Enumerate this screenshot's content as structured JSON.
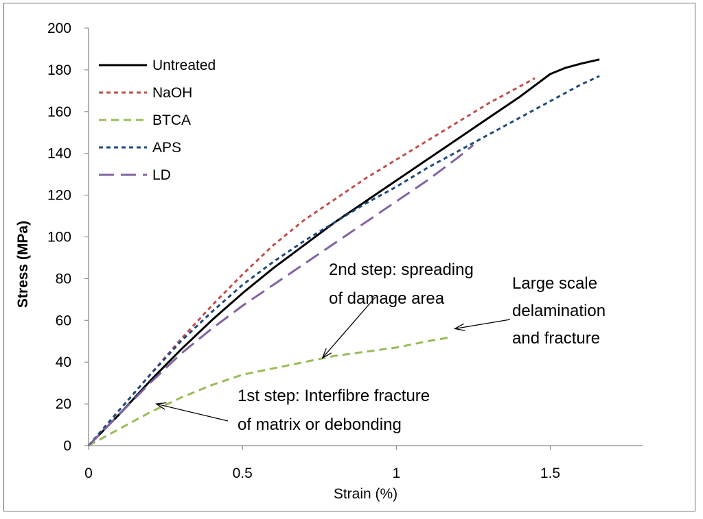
{
  "chart_data": {
    "type": "line",
    "title": "",
    "xlabel": "Strain (%)",
    "ylabel": "Stress (MPa)",
    "xlim": [
      0,
      1.8
    ],
    "ylim": [
      0,
      200
    ],
    "x_ticks": [
      0,
      0.5,
      1,
      1.5
    ],
    "y_ticks": [
      0,
      20,
      40,
      60,
      80,
      100,
      120,
      140,
      160,
      180,
      200
    ],
    "x_tick_labels": [
      "0",
      "0.5",
      "1",
      "1.5"
    ],
    "y_tick_labels": [
      "0",
      "20",
      "40",
      "60",
      "80",
      "100",
      "120",
      "140",
      "160",
      "180",
      "200"
    ],
    "grid": false,
    "legend_position": "top-left",
    "series": [
      {
        "name": "Untreated",
        "color": "#000000",
        "dash": "solid",
        "points": [
          [
            0,
            0
          ],
          [
            0.1,
            15
          ],
          [
            0.2,
            31
          ],
          [
            0.3,
            46
          ],
          [
            0.4,
            60
          ],
          [
            0.5,
            73
          ],
          [
            0.6,
            85
          ],
          [
            0.7,
            96
          ],
          [
            0.8,
            107
          ],
          [
            0.9,
            117
          ],
          [
            1.0,
            127
          ],
          [
            1.1,
            137
          ],
          [
            1.2,
            147
          ],
          [
            1.3,
            157
          ],
          [
            1.4,
            167
          ],
          [
            1.5,
            178
          ],
          [
            1.55,
            181
          ],
          [
            1.6,
            183
          ],
          [
            1.66,
            185
          ]
        ]
      },
      {
        "name": "NaOH",
        "color": "#c0504d",
        "dash": "short",
        "points": [
          [
            0,
            0
          ],
          [
            0.1,
            17
          ],
          [
            0.2,
            34
          ],
          [
            0.3,
            51
          ],
          [
            0.4,
            67
          ],
          [
            0.5,
            82
          ],
          [
            0.6,
            96
          ],
          [
            0.7,
            108
          ],
          [
            0.8,
            118
          ],
          [
            0.9,
            128
          ],
          [
            1.0,
            137
          ],
          [
            1.1,
            146
          ],
          [
            1.2,
            155
          ],
          [
            1.3,
            164
          ],
          [
            1.4,
            172
          ],
          [
            1.45,
            176
          ]
        ]
      },
      {
        "name": "BTCA",
        "color": "#9bbb59",
        "dash": "medium",
        "points": [
          [
            0,
            0
          ],
          [
            0.1,
            8
          ],
          [
            0.2,
            16
          ],
          [
            0.3,
            23
          ],
          [
            0.4,
            29
          ],
          [
            0.5,
            34
          ],
          [
            0.6,
            37
          ],
          [
            0.7,
            40
          ],
          [
            0.8,
            43
          ],
          [
            0.9,
            45
          ],
          [
            1.0,
            47
          ],
          [
            1.1,
            50
          ],
          [
            1.18,
            52
          ]
        ]
      },
      {
        "name": "APS",
        "color": "#1f497d",
        "dash": "short",
        "points": [
          [
            0,
            0
          ],
          [
            0.1,
            17
          ],
          [
            0.2,
            34
          ],
          [
            0.3,
            50
          ],
          [
            0.4,
            64
          ],
          [
            0.5,
            77
          ],
          [
            0.6,
            88
          ],
          [
            0.7,
            98
          ],
          [
            0.8,
            107
          ],
          [
            0.9,
            116
          ],
          [
            1.0,
            124
          ],
          [
            1.1,
            133
          ],
          [
            1.2,
            141
          ],
          [
            1.3,
            149
          ],
          [
            1.4,
            157
          ],
          [
            1.5,
            165
          ],
          [
            1.6,
            173
          ],
          [
            1.66,
            177
          ]
        ]
      },
      {
        "name": "LD",
        "color": "#8064a2",
        "dash": "long",
        "points": [
          [
            0,
            0
          ],
          [
            0.1,
            15
          ],
          [
            0.2,
            30
          ],
          [
            0.3,
            44
          ],
          [
            0.4,
            56
          ],
          [
            0.5,
            67
          ],
          [
            0.6,
            77
          ],
          [
            0.7,
            87
          ],
          [
            0.8,
            97
          ],
          [
            0.9,
            107
          ],
          [
            1.0,
            117
          ],
          [
            1.1,
            127
          ],
          [
            1.2,
            138
          ],
          [
            1.25,
            144
          ]
        ]
      }
    ],
    "annotations": [
      {
        "lines": [
          "1st step: Interfibre fracture",
          "of matrix or debonding"
        ],
        "arrow_to": [
          0.22,
          20
        ]
      },
      {
        "lines": [
          "2nd step: spreading",
          "of damage area"
        ],
        "arrow_to": [
          0.76,
          42
        ]
      },
      {
        "lines": [
          "Large scale",
          "delamination",
          "and fracture"
        ],
        "arrow_to": [
          1.19,
          56
        ]
      }
    ]
  }
}
